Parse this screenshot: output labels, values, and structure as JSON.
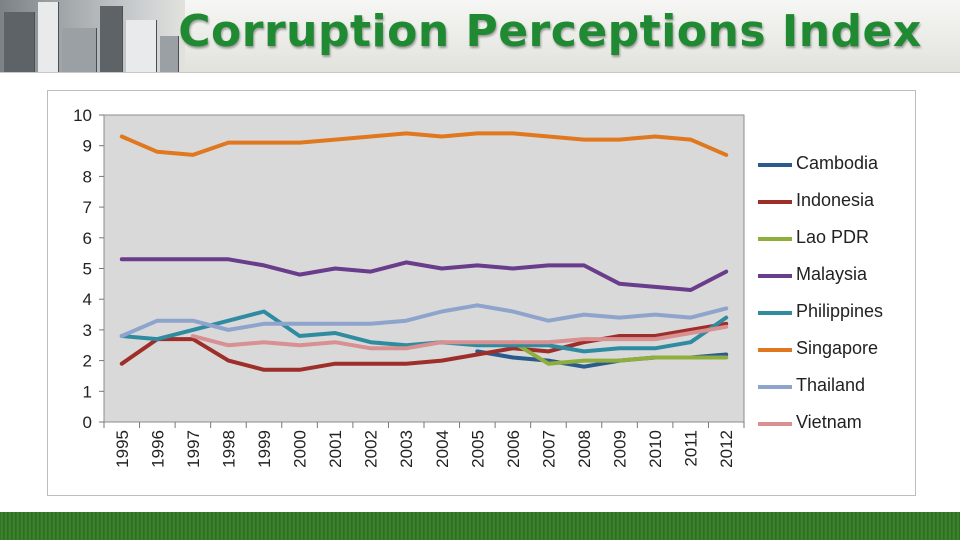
{
  "header": {
    "title": "Corruption Perceptions Index"
  },
  "chart_data": {
    "type": "line",
    "title": "Corruption Perceptions Index",
    "xlabel": "",
    "ylabel": "",
    "ylim": [
      0,
      10
    ],
    "yticks": [
      "0",
      "1",
      "2",
      "3",
      "4",
      "5",
      "6",
      "7",
      "8",
      "9",
      "10"
    ],
    "categories": [
      "1995",
      "1996",
      "1997",
      "1998",
      "1999",
      "2000",
      "2001",
      "2002",
      "2003",
      "2004",
      "2005",
      "2006",
      "2007",
      "2008",
      "2009",
      "2010",
      "2011",
      "2012"
    ],
    "legend_position": "right",
    "series": [
      {
        "name": "Cambodia",
        "color": "#2a5b8c",
        "values": [
          null,
          null,
          null,
          null,
          null,
          null,
          null,
          null,
          null,
          null,
          2.3,
          2.1,
          2.0,
          1.8,
          2.0,
          2.1,
          2.1,
          2.2
        ]
      },
      {
        "name": "Indonesia",
        "color": "#9e2e2a",
        "values": [
          1.9,
          2.7,
          2.7,
          2.0,
          1.7,
          1.7,
          1.9,
          1.9,
          1.9,
          2.0,
          2.2,
          2.4,
          2.3,
          2.6,
          2.8,
          2.8,
          3.0,
          3.2
        ]
      },
      {
        "name": "Lao PDR",
        "color": "#8fae3c",
        "values": [
          null,
          null,
          null,
          null,
          null,
          null,
          null,
          null,
          null,
          null,
          null,
          2.6,
          1.9,
          2.0,
          2.0,
          2.1,
          2.1,
          2.1
        ]
      },
      {
        "name": "Malaysia",
        "color": "#6a3c8c",
        "values": [
          5.3,
          5.3,
          5.3,
          5.3,
          5.1,
          4.8,
          5.0,
          4.9,
          5.2,
          5.0,
          5.1,
          5.0,
          5.1,
          5.1,
          4.5,
          4.4,
          4.3,
          4.9
        ]
      },
      {
        "name": "Philippines",
        "color": "#2f8ca0",
        "values": [
          2.8,
          2.7,
          3.0,
          3.3,
          3.6,
          2.8,
          2.9,
          2.6,
          2.5,
          2.6,
          2.5,
          2.5,
          2.5,
          2.3,
          2.4,
          2.4,
          2.6,
          3.4
        ]
      },
      {
        "name": "Singapore",
        "color": "#e0781f",
        "values": [
          9.3,
          8.8,
          8.7,
          9.1,
          9.1,
          9.1,
          9.2,
          9.3,
          9.4,
          9.3,
          9.4,
          9.4,
          9.3,
          9.2,
          9.2,
          9.3,
          9.2,
          8.7
        ]
      },
      {
        "name": "Thailand",
        "color": "#8ea4cc",
        "values": [
          2.8,
          3.3,
          3.3,
          3.0,
          3.2,
          3.2,
          3.2,
          3.2,
          3.3,
          3.6,
          3.8,
          3.6,
          3.3,
          3.5,
          3.4,
          3.5,
          3.4,
          3.7
        ]
      },
      {
        "name": "Vietnam",
        "color": "#d89090",
        "values": [
          null,
          null,
          2.8,
          2.5,
          2.6,
          2.5,
          2.6,
          2.4,
          2.4,
          2.6,
          2.6,
          2.6,
          2.6,
          2.7,
          2.7,
          2.7,
          2.9,
          3.1
        ]
      }
    ]
  }
}
